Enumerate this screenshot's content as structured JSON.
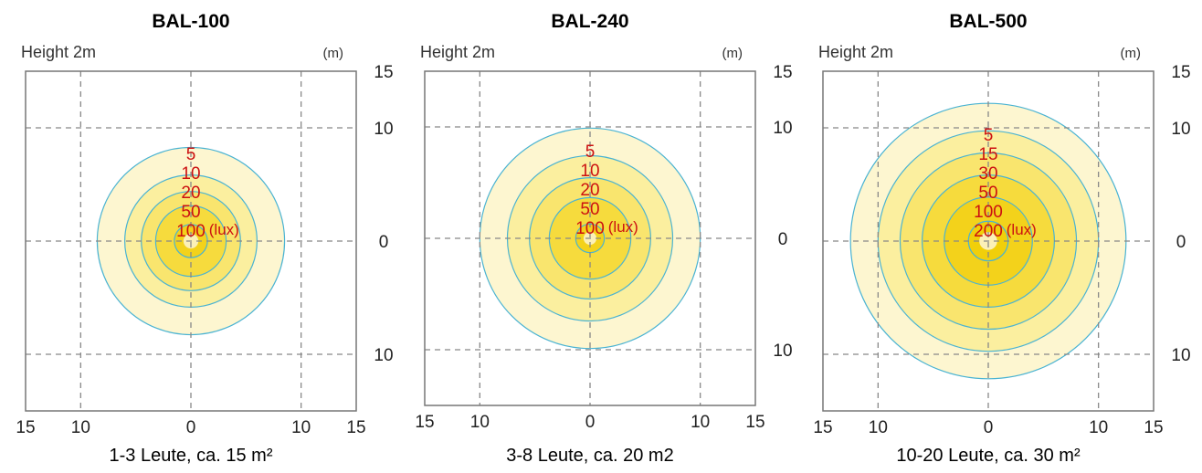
{
  "chart_data": [
    {
      "type": "contour",
      "title": "BAL-100",
      "subtitle": "Height 2m",
      "unit": "(m)",
      "caption": "1-3 Leute, ca. 15 m²",
      "lux_unit": "(lux)",
      "levels": [
        {
          "label": "5",
          "radius_m": 8.5
        },
        {
          "label": "10",
          "radius_m": 6.0
        },
        {
          "label": "20",
          "radius_m": 4.5
        },
        {
          "label": "50",
          "radius_m": 3.2
        },
        {
          "label": "100",
          "radius_m": 1.5
        }
      ],
      "xlim": [
        -15,
        15
      ],
      "ylim": [
        -15,
        15
      ],
      "xticks": [
        {
          "v": -15,
          "label": "15"
        },
        {
          "v": -10,
          "label": "10"
        },
        {
          "v": 0,
          "label": "0"
        },
        {
          "v": 10,
          "label": "10"
        },
        {
          "v": 15,
          "label": "15"
        }
      ],
      "yticks": [
        {
          "v": 15,
          "label": "15"
        },
        {
          "v": 10,
          "label": "10"
        },
        {
          "v": 0,
          "label": "0"
        },
        {
          "v": -10,
          "label": "10"
        }
      ],
      "grid": true
    },
    {
      "type": "contour",
      "title": "BAL-240",
      "subtitle": "Height 2m",
      "unit": "(m)",
      "caption": "3-8 Leute, ca. 20 m2",
      "lux_unit": "(lux)",
      "levels": [
        {
          "label": "5",
          "radius_m": 10.0
        },
        {
          "label": "10",
          "radius_m": 7.5
        },
        {
          "label": "20",
          "radius_m": 5.5
        },
        {
          "label": "50",
          "radius_m": 3.7
        },
        {
          "label": "100",
          "radius_m": 1.3
        }
      ],
      "xlim": [
        -15,
        15
      ],
      "ylim": [
        -15,
        15
      ],
      "xticks": [
        {
          "v": -15,
          "label": "15"
        },
        {
          "v": -10,
          "label": "10"
        },
        {
          "v": 0,
          "label": "0"
        },
        {
          "v": 10,
          "label": "10"
        },
        {
          "v": 15,
          "label": "15"
        }
      ],
      "yticks": [
        {
          "v": 15,
          "label": "15"
        },
        {
          "v": 10,
          "label": "10"
        },
        {
          "v": 0,
          "label": "0"
        },
        {
          "v": -10,
          "label": "10"
        }
      ],
      "grid": true
    },
    {
      "type": "contour",
      "title": "BAL-500",
      "subtitle": "Height 2m",
      "unit": "(m)",
      "caption": "10-20 Leute, ca. 30 m²",
      "lux_unit": "(lux)",
      "levels": [
        {
          "label": "5",
          "radius_m": 12.5
        },
        {
          "label": "15",
          "radius_m": 10.0
        },
        {
          "label": "30",
          "radius_m": 8.0
        },
        {
          "label": "50",
          "radius_m": 6.0
        },
        {
          "label": "100",
          "radius_m": 4.0
        },
        {
          "label": "200",
          "radius_m": 1.8
        }
      ],
      "xlim": [
        -15,
        15
      ],
      "ylim": [
        -15,
        15
      ],
      "xticks": [
        {
          "v": -15,
          "label": "15"
        },
        {
          "v": -10,
          "label": "10"
        },
        {
          "v": 0,
          "label": "0"
        },
        {
          "v": 10,
          "label": "10"
        },
        {
          "v": 15,
          "label": "15"
        }
      ],
      "yticks": [
        {
          "v": 15,
          "label": "15"
        },
        {
          "v": 10,
          "label": "10"
        },
        {
          "v": 0,
          "label": "0"
        },
        {
          "v": -10,
          "label": "10"
        }
      ],
      "grid": true
    }
  ]
}
